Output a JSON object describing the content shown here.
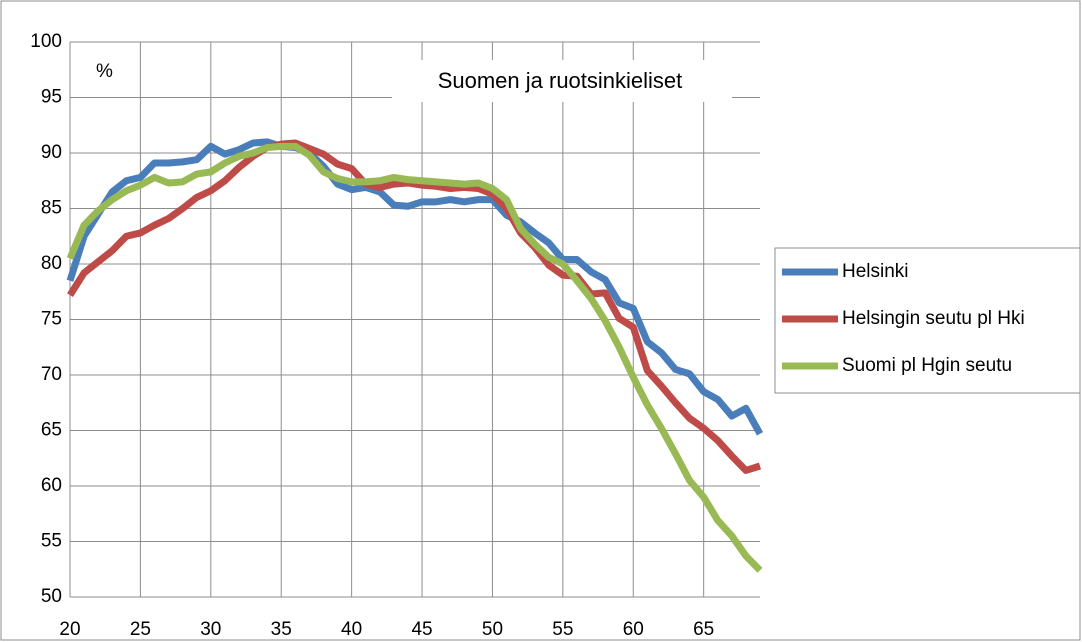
{
  "chart_data": {
    "type": "line",
    "title": "Suomen ja ruotsinkieliset",
    "y_label": "%",
    "x": [
      20,
      21,
      22,
      23,
      24,
      25,
      26,
      27,
      28,
      29,
      30,
      31,
      32,
      33,
      34,
      35,
      36,
      37,
      38,
      39,
      40,
      41,
      42,
      43,
      44,
      45,
      46,
      47,
      48,
      49,
      50,
      51,
      52,
      53,
      54,
      55,
      56,
      57,
      58,
      59,
      60,
      61,
      62,
      63,
      64,
      65,
      66,
      67,
      68,
      69
    ],
    "series": [
      {
        "name": "Helsinki",
        "color": "#4a7ebb",
        "values": [
          78.5,
          82.5,
          84.5,
          86.5,
          87.5,
          87.8,
          89.1,
          89.1,
          89.2,
          89.4,
          90.6,
          89.9,
          90.3,
          90.9,
          91.0,
          90.6,
          90.5,
          90.0,
          88.8,
          87.2,
          86.7,
          86.9,
          86.5,
          85.3,
          85.2,
          85.6,
          85.6,
          85.8,
          85.6,
          85.8,
          85.8,
          84.4,
          83.8,
          82.8,
          81.9,
          80.4,
          80.4,
          79.3,
          78.6,
          76.5,
          76.0,
          73.0,
          72.0,
          70.5,
          70.1,
          68.5,
          67.8,
          66.3,
          67.0,
          64.7
        ]
      },
      {
        "name": "Helsingin seutu pl Hki",
        "color": "#be4b48",
        "values": [
          77.2,
          79.2,
          80.2,
          81.2,
          82.5,
          82.8,
          83.5,
          84.1,
          85.0,
          86.0,
          86.6,
          87.5,
          88.7,
          89.7,
          90.5,
          90.8,
          90.9,
          90.4,
          89.9,
          89.0,
          88.6,
          87.2,
          86.9,
          87.2,
          87.3,
          87.1,
          87.0,
          86.8,
          86.9,
          86.8,
          86.3,
          85.0,
          82.8,
          81.5,
          79.9,
          79.0,
          78.9,
          77.3,
          77.4,
          75.1,
          74.3,
          70.4,
          69.0,
          67.5,
          66.1,
          65.2,
          64.1,
          62.7,
          61.4,
          61.8
        ]
      },
      {
        "name": "Suomi pl Hgin seutu",
        "color": "#98b954",
        "values": [
          80.5,
          83.5,
          84.8,
          85.8,
          86.6,
          87.1,
          87.8,
          87.3,
          87.4,
          88.1,
          88.3,
          89.1,
          89.7,
          90.0,
          90.5,
          90.6,
          90.6,
          89.8,
          88.3,
          87.7,
          87.4,
          87.4,
          87.5,
          87.8,
          87.6,
          87.5,
          87.4,
          87.3,
          87.2,
          87.3,
          86.8,
          85.8,
          83.2,
          81.8,
          80.6,
          80.0,
          78.5,
          76.9,
          74.9,
          72.5,
          69.8,
          67.3,
          65.2,
          62.9,
          60.5,
          59.0,
          56.9,
          55.5,
          53.7,
          52.4
        ]
      }
    ],
    "xlim": [
      20,
      69
    ],
    "xticks": [
      20,
      25,
      30,
      35,
      40,
      45,
      50,
      55,
      60,
      65
    ],
    "ylim": [
      50,
      100
    ],
    "yticks": [
      50,
      55,
      60,
      65,
      70,
      75,
      80,
      85,
      90,
      95,
      100
    ],
    "grid": true,
    "legend": "right"
  }
}
